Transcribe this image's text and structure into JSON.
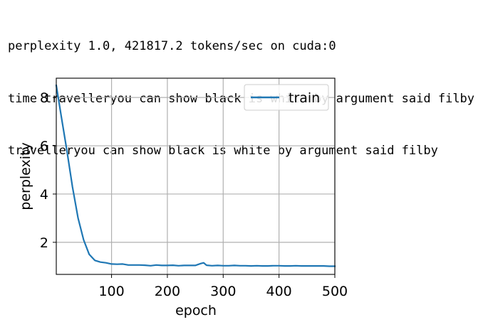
{
  "output": {
    "lines": [
      "perplexity 1.0, 421817.2 tokens/sec on cuda:0",
      "time travelleryou can show black is white by argument said filby",
      "travelleryou can show black is white by argument said filby"
    ]
  },
  "colors": {
    "series": "#1f77b4",
    "grid": "#b0b0b0",
    "axis": "#000000",
    "legend_border": "#cccccc"
  },
  "chart_data": {
    "type": "line",
    "title": "",
    "xlabel": "epoch",
    "ylabel": "perplexity",
    "xlim": [
      1,
      500
    ],
    "ylim": [
      0.67,
      8.8
    ],
    "xticks": [
      100,
      200,
      300,
      400,
      500
    ],
    "yticks": [
      2,
      4,
      6,
      8
    ],
    "grid": true,
    "legend_position": "top-right",
    "series": [
      {
        "name": "train",
        "x": [
          1,
          10,
          20,
          30,
          40,
          50,
          60,
          70,
          80,
          90,
          100,
          110,
          120,
          130,
          140,
          150,
          160,
          170,
          180,
          190,
          200,
          210,
          220,
          230,
          240,
          250,
          260,
          265,
          270,
          280,
          290,
          300,
          310,
          320,
          330,
          340,
          350,
          360,
          370,
          380,
          390,
          400,
          410,
          420,
          430,
          440,
          450,
          460,
          470,
          480,
          490,
          500
        ],
        "y": [
          8.5,
          7.2,
          5.8,
          4.3,
          3.0,
          2.1,
          1.5,
          1.25,
          1.18,
          1.15,
          1.1,
          1.09,
          1.1,
          1.06,
          1.06,
          1.06,
          1.05,
          1.03,
          1.06,
          1.04,
          1.04,
          1.05,
          1.03,
          1.04,
          1.04,
          1.04,
          1.12,
          1.15,
          1.05,
          1.03,
          1.04,
          1.03,
          1.03,
          1.04,
          1.03,
          1.03,
          1.02,
          1.03,
          1.02,
          1.02,
          1.03,
          1.03,
          1.02,
          1.02,
          1.03,
          1.02,
          1.02,
          1.02,
          1.02,
          1.02,
          1.01,
          1.01
        ]
      }
    ]
  }
}
